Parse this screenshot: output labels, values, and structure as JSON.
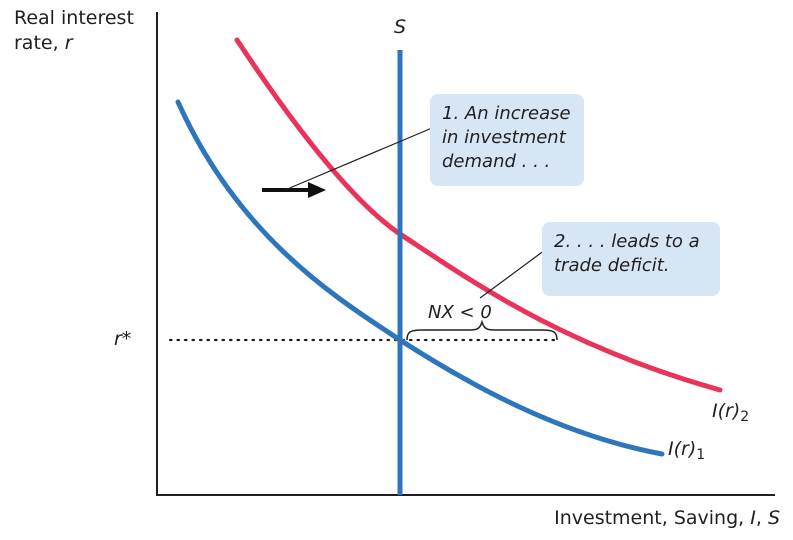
{
  "axes": {
    "y_label_line1": "Real interest",
    "y_label_line2_prefix": "rate, ",
    "y_label_line2_var": "r",
    "x_label_prefix": "Investment, Saving, ",
    "x_label_var1": "I",
    "x_label_sep": ", ",
    "x_label_var2": "S"
  },
  "labels": {
    "r_star": "r*",
    "saving": "S",
    "nx": "NX < 0",
    "curve1_main": "I(r)",
    "curve1_sub": "1",
    "curve2_main": "I(r)",
    "curve2_sub": "2"
  },
  "callouts": {
    "box1": [
      "1. An increase",
      "in investment",
      "demand . . ."
    ],
    "box2": [
      "2. . . . leads to a",
      "trade deficit."
    ]
  },
  "colors": {
    "investment_1": "#2e75bb",
    "investment_2": "#e8345a",
    "saving": "#2e75bb",
    "callout_bg": "#d6e6f5",
    "axis": "#231f20"
  }
}
